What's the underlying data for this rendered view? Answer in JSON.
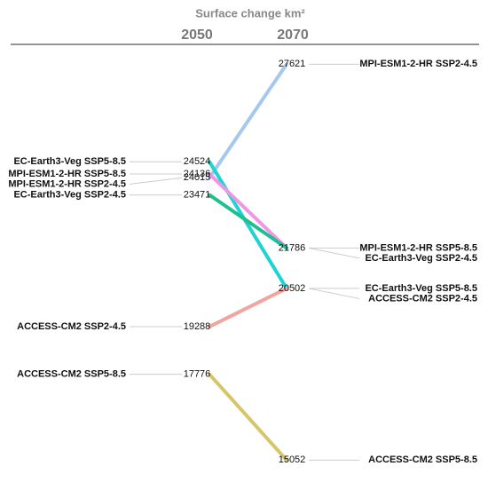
{
  "chart_data": {
    "type": "slope",
    "title": "Surface change km²",
    "categories": [
      "2050",
      "2070"
    ],
    "ylim": [
      14300,
      28250
    ],
    "series": [
      {
        "name": "MPI-ESM1-2-HR SSP2-4.5",
        "color": "#a6c8ef",
        "values": [
          24015,
          27621
        ]
      },
      {
        "name": "EC-Earth3-Veg SSP5-8.5",
        "color": "#1fd3d3",
        "values": [
          24524,
          20502
        ]
      },
      {
        "name": "MPI-ESM1-2-HR SSP5-8.5",
        "color": "#f096e6",
        "values": [
          24136,
          21786
        ]
      },
      {
        "name": "EC-Earth3-Veg SSP2-4.5",
        "color": "#1fbf8f",
        "values": [
          23471,
          21786
        ]
      },
      {
        "name": "ACCESS-CM2 SSP2-4.5",
        "color": "#f2a49e",
        "values": [
          19288,
          20502
        ]
      },
      {
        "name": "ACCESS-CM2 SSP5-8.5",
        "color": "#d6c66a",
        "values": [
          17776,
          15052
        ]
      }
    ]
  }
}
